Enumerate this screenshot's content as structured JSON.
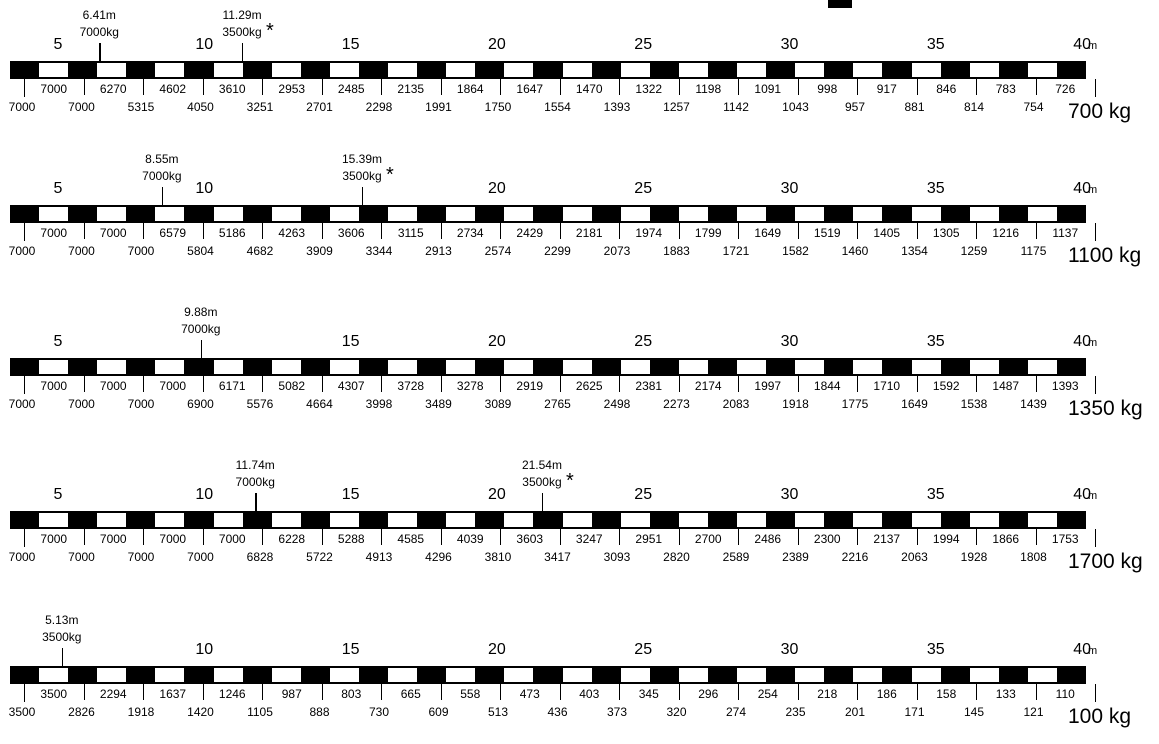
{
  "unit_label": "m",
  "charts": [
    {
      "counterweight": "700 kg",
      "distance_labels": [
        "5",
        "10",
        "15",
        "20",
        "25",
        "30",
        "35",
        "40"
      ],
      "callouts": [
        {
          "distance": "6.41m",
          "capacity": "7000kg",
          "asterisk": false,
          "at": 6.41
        },
        {
          "distance": "11.29m",
          "capacity": "3500kg",
          "asterisk": true,
          "at": 11.29
        }
      ],
      "row1": [
        "7000",
        "6270",
        "4602",
        "3610",
        "2953",
        "2485",
        "2135",
        "1864",
        "1647",
        "1470",
        "1322",
        "1198",
        "1091",
        "998",
        "917",
        "846",
        "783",
        "726"
      ],
      "row2": [
        "7000",
        "7000",
        "5315",
        "4050",
        "3251",
        "2701",
        "2298",
        "1991",
        "1750",
        "1554",
        "1393",
        "1257",
        "1142",
        "1043",
        "957",
        "881",
        "814",
        "754"
      ]
    },
    {
      "counterweight": "1100 kg",
      "distance_labels": [
        "5",
        "10",
        "20",
        "25",
        "30",
        "35",
        "40"
      ],
      "callouts": [
        {
          "distance": "8.55m",
          "capacity": "7000kg",
          "asterisk": false,
          "at": 8.55
        },
        {
          "distance": "15.39m",
          "capacity": "3500kg",
          "asterisk": true,
          "at": 15.39
        }
      ],
      "row1": [
        "7000",
        "7000",
        "6579",
        "5186",
        "4263",
        "3606",
        "3115",
        "2734",
        "2429",
        "2181",
        "1974",
        "1799",
        "1649",
        "1519",
        "1405",
        "1305",
        "1216",
        "1137"
      ],
      "row2": [
        "7000",
        "7000",
        "7000",
        "5804",
        "4682",
        "3909",
        "3344",
        "2913",
        "2574",
        "2299",
        "2073",
        "1883",
        "1721",
        "1582",
        "1460",
        "1354",
        "1259",
        "1175"
      ]
    },
    {
      "counterweight": "1350 kg",
      "distance_labels": [
        "5",
        "15",
        "20",
        "25",
        "30",
        "35",
        "40"
      ],
      "callouts": [
        {
          "distance": "9.88m",
          "capacity": "7000kg",
          "asterisk": false,
          "at": 9.88
        }
      ],
      "row1": [
        "7000",
        "7000",
        "7000",
        "6171",
        "5082",
        "4307",
        "3728",
        "3278",
        "2919",
        "2625",
        "2381",
        "2174",
        "1997",
        "1844",
        "1710",
        "1592",
        "1487",
        "1393"
      ],
      "row2": [
        "7000",
        "7000",
        "7000",
        "6900",
        "5576",
        "4664",
        "3998",
        "3489",
        "3089",
        "2765",
        "2498",
        "2273",
        "2083",
        "1918",
        "1775",
        "1649",
        "1538",
        "1439"
      ]
    },
    {
      "counterweight": "1700 kg",
      "distance_labels": [
        "5",
        "10",
        "15",
        "20",
        "25",
        "30",
        "35",
        "40"
      ],
      "callouts": [
        {
          "distance": "11.74m",
          "capacity": "7000kg",
          "asterisk": false,
          "at": 11.74
        },
        {
          "distance": "21.54m",
          "capacity": "3500kg",
          "asterisk": true,
          "at": 21.54
        }
      ],
      "row1": [
        "7000",
        "7000",
        "7000",
        "7000",
        "6228",
        "5288",
        "4585",
        "4039",
        "3603",
        "3247",
        "2951",
        "2700",
        "2486",
        "2300",
        "2137",
        "1994",
        "1866",
        "1753"
      ],
      "row2": [
        "7000",
        "7000",
        "7000",
        "7000",
        "6828",
        "5722",
        "4913",
        "4296",
        "3810",
        "3417",
        "3093",
        "2820",
        "2589",
        "2389",
        "2216",
        "2063",
        "1928",
        "1808"
      ]
    },
    {
      "counterweight": "100 kg",
      "distance_labels": [
        "10",
        "15",
        "20",
        "25",
        "30",
        "35",
        "40"
      ],
      "callouts": [
        {
          "distance": "5.13m",
          "capacity": "3500kg",
          "asterisk": false,
          "at": 5.13
        }
      ],
      "row1": [
        "3500",
        "2294",
        "1637",
        "1246",
        "987",
        "803",
        "665",
        "558",
        "473",
        "403",
        "345",
        "296",
        "254",
        "218",
        "186",
        "158",
        "133",
        "110"
      ],
      "row2": [
        "3500",
        "2826",
        "1918",
        "1420",
        "1105",
        "888",
        "730",
        "609",
        "513",
        "436",
        "373",
        "320",
        "274",
        "235",
        "201",
        "171",
        "145",
        "121"
      ]
    }
  ]
}
